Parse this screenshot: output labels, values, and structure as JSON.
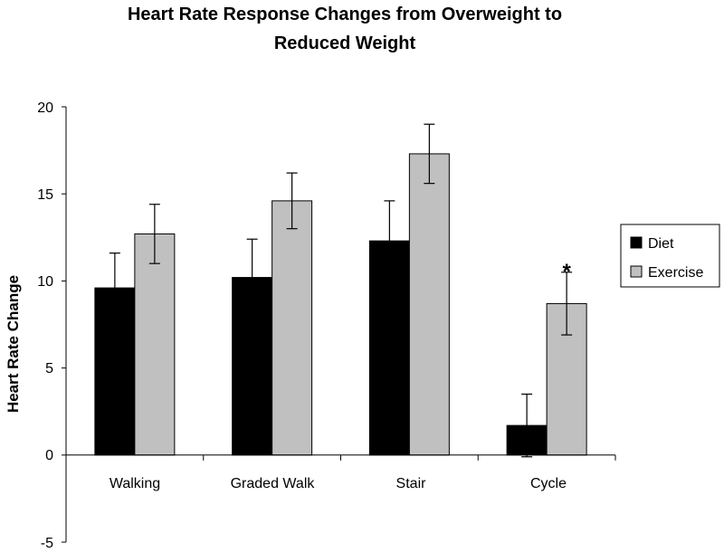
{
  "chart_data": {
    "type": "bar",
    "title_lines": [
      "Heart Rate Response Changes from Overweight to",
      "Reduced Weight"
    ],
    "xlabel": "",
    "ylabel": "Heart Rate Change",
    "ylim": [
      -5,
      20
    ],
    "yticks": [
      "20",
      "15",
      "10",
      "5",
      "0",
      "-5"
    ],
    "ytick_values": [
      20,
      15,
      10,
      5,
      0,
      -5
    ],
    "categories": [
      "Walking",
      "Graded Walk",
      "Stair",
      "Cycle"
    ],
    "series": [
      {
        "name": "Diet",
        "color": "#000000",
        "values": [
          9.6,
          10.2,
          12.3,
          1.7
        ],
        "error": [
          2.0,
          2.2,
          2.3,
          1.8
        ]
      },
      {
        "name": "Exercise",
        "color": "#c0c0c0",
        "values": [
          12.7,
          14.6,
          17.3,
          8.7
        ],
        "error": [
          1.7,
          1.6,
          1.7,
          1.8
        ]
      }
    ],
    "annotations": [
      {
        "text": "*",
        "category": "Cycle",
        "series": "Exercise"
      }
    ],
    "legend": [
      "Diet",
      "Exercise"
    ],
    "legend_position": "right",
    "grid": false
  }
}
